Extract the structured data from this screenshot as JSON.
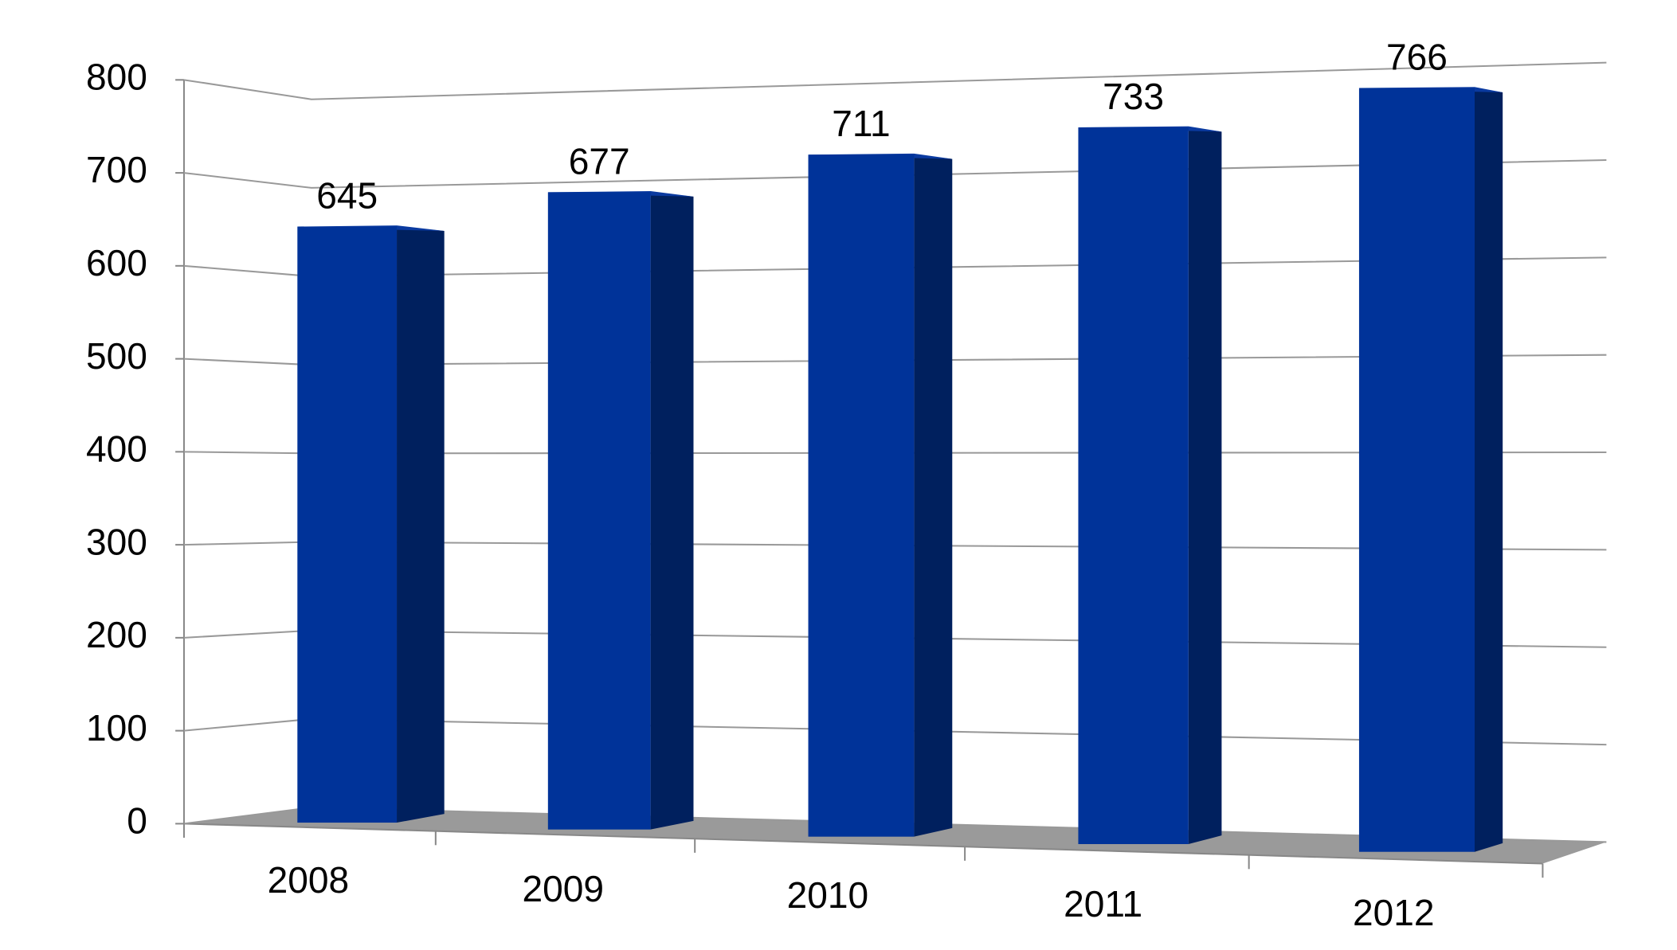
{
  "chart_data": {
    "type": "bar",
    "categories": [
      "2008",
      "2009",
      "2010",
      "2011",
      "2012"
    ],
    "values": [
      645,
      677,
      711,
      733,
      766
    ],
    "color": "#003399",
    "ylim": [
      0,
      800
    ],
    "yticks": [
      0,
      100,
      200,
      300,
      400,
      500,
      600,
      700,
      800
    ],
    "grid": true
  }
}
